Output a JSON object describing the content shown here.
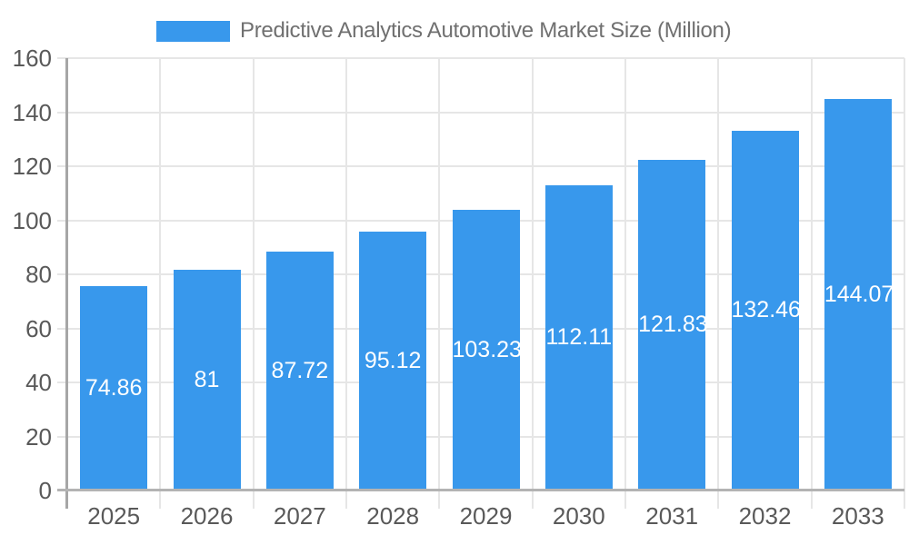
{
  "chart_data": {
    "type": "bar",
    "title": "Predictive Analytics Automotive Market Size (Million)",
    "categories": [
      "2025",
      "2026",
      "2027",
      "2028",
      "2029",
      "2030",
      "2031",
      "2032",
      "2033"
    ],
    "values": [
      74.86,
      81,
      87.72,
      95.12,
      103.23,
      112.11,
      121.83,
      132.46,
      144.07
    ],
    "value_labels": [
      "74.86",
      "81",
      "87.72",
      "95.12",
      "103.23",
      "112.11",
      "121.83",
      "132.46",
      "144.07"
    ],
    "xlabel": "",
    "ylabel": "",
    "ylim": [
      0,
      160
    ],
    "ytick_step": 20,
    "ytick_labels": [
      "0",
      "20",
      "40",
      "60",
      "80",
      "100",
      "120",
      "140",
      "160"
    ],
    "grid": "both",
    "legend_position": "top",
    "value_label_position": "center-of-bar",
    "colors": {
      "bar": "#3898EC",
      "grid": "#E6E6E6",
      "y_axis_line": "#A6A6A6",
      "x_axis_line": "#B3B3B3",
      "tick_label": "#595959",
      "value_label": "#FFFFFF",
      "title": "#707070",
      "background": "#FFFFFF"
    }
  }
}
